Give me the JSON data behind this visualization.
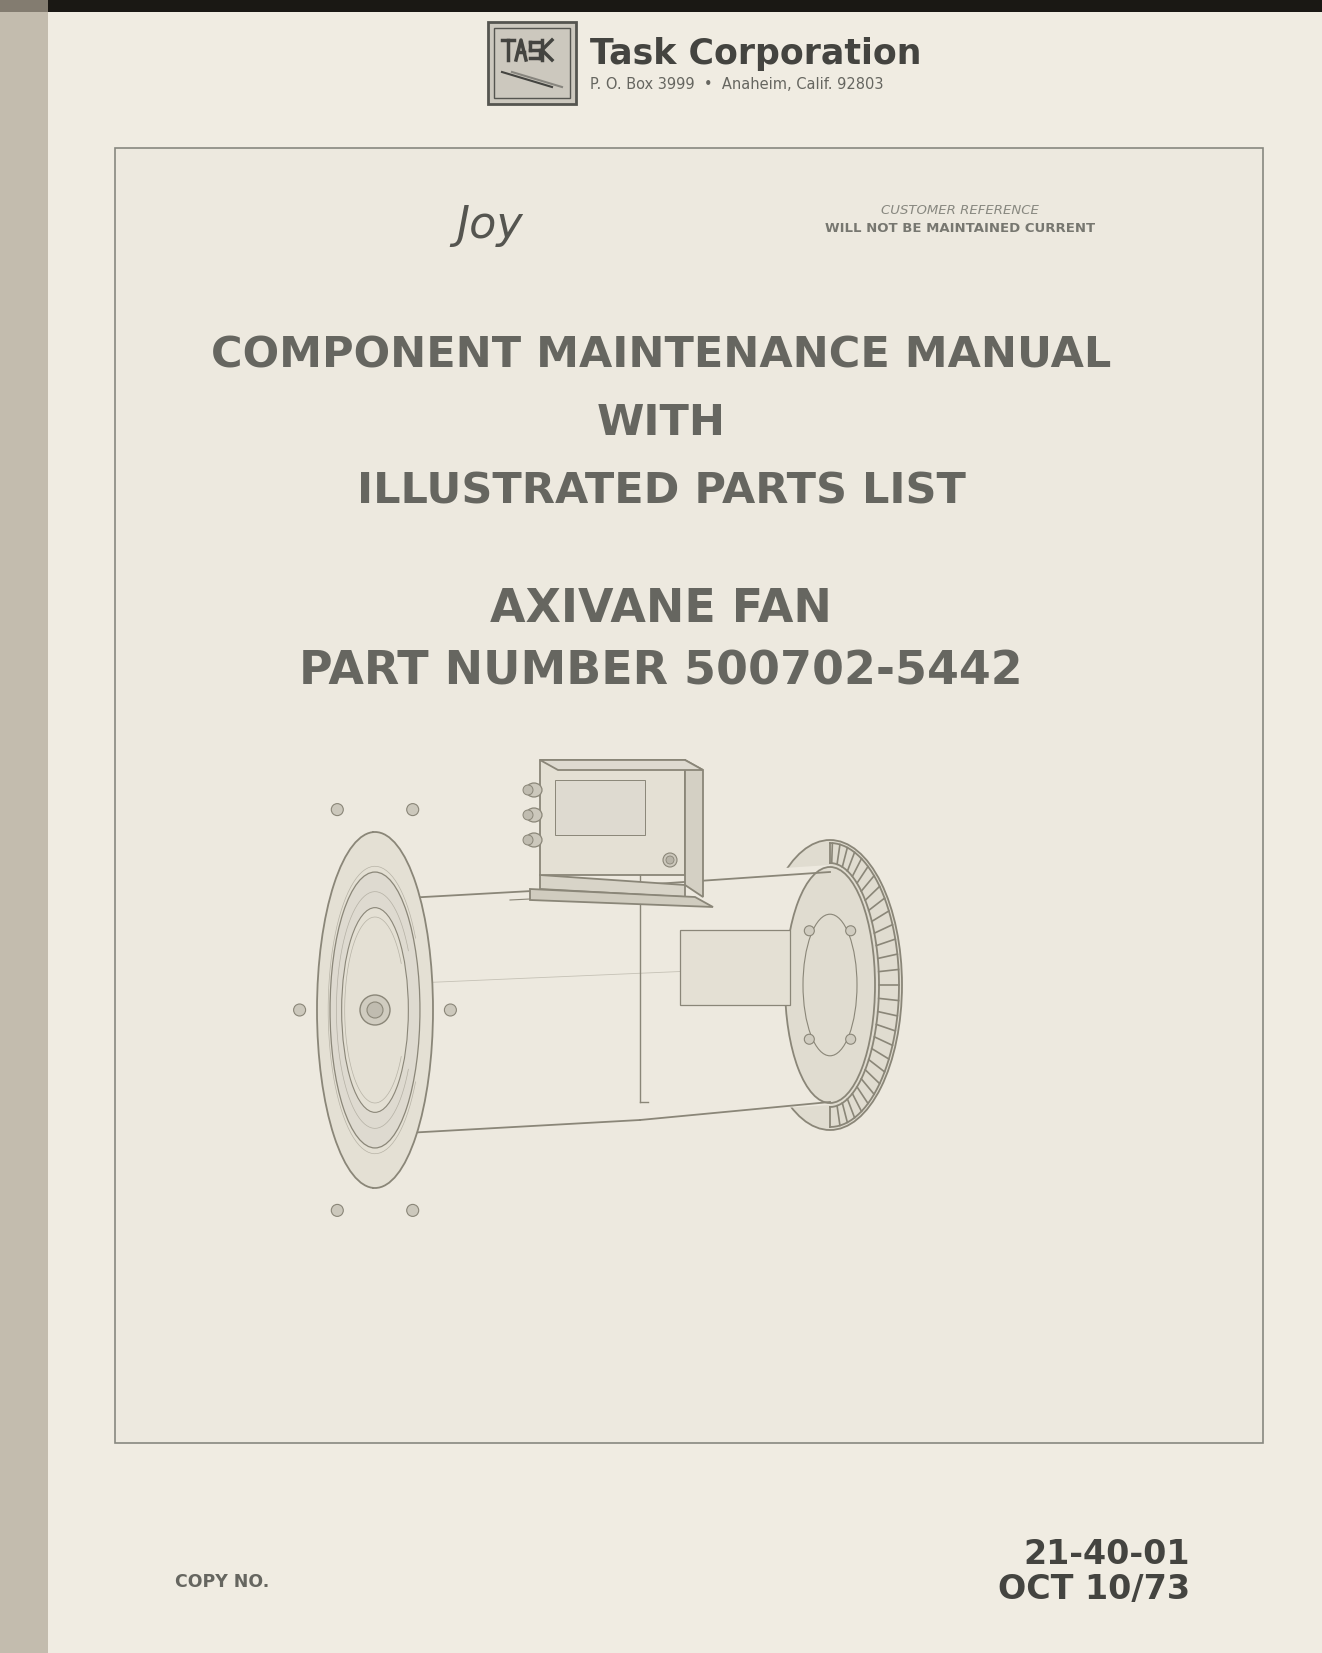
{
  "bg_color": "#d8d4c8",
  "page_bg": "#f0ece2",
  "inner_bg": "#ede9df",
  "border_color": "#888880",
  "text_color": "#666660",
  "dark_text": "#444440",
  "line_color": "#888880",
  "company_name": "Task Corporation",
  "company_address": "P. O. Box 3999  •  Anaheim, Calif. 92803",
  "handwritten": "Joy",
  "customer_ref_line1": "CUSTOMER REFERENCE",
  "customer_ref_line2": "WILL NOT BE MAINTAINED CURRENT",
  "title_line1": "COMPONENT MAINTENANCE MANUAL",
  "title_line2": "WITH",
  "title_line3": "ILLUSTRATED PARTS LIST",
  "subtitle_line1": "AXIVANE FAN",
  "subtitle_line2": "PART NUMBER 500702-5442",
  "doc_number": "21-40-01",
  "doc_date": "OCT 10/73",
  "copy_label": "COPY NO.",
  "logo_text": "TASK"
}
